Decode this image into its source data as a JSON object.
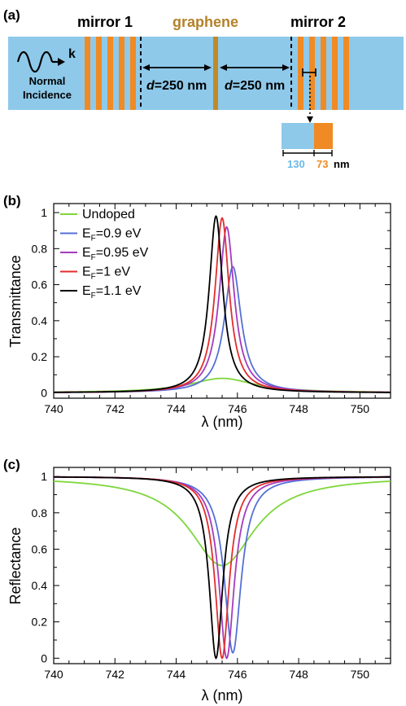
{
  "panel_a": {
    "label": "(a)",
    "mirror1_label": "mirror 1",
    "graphene_label": "graphene",
    "mirror2_label": "mirror 2",
    "k_label": "k",
    "incidence_line1": "Normal",
    "incidence_line2": "Incidence",
    "d_left": {
      "d": "d",
      "value": "=250 nm"
    },
    "d_right": {
      "d": "d",
      "value": "=250 nm"
    },
    "layer_a": "130",
    "layer_b": "73",
    "unit": "nm",
    "colors": {
      "waveguide": "#8ec9ea",
      "mirror": "#f08a24",
      "graphene": "#c0892a",
      "graphene_text": "#b3822a",
      "layer_a_text": "#6cb8e4"
    }
  },
  "chart_data": [
    {
      "panel_label": "(b)",
      "type": "line",
      "xlabel": "λ (nm)",
      "ylabel": "Transmittance",
      "xlim": [
        740,
        751
      ],
      "ylim": [
        -0.03,
        1.05
      ],
      "xticks": [
        "740",
        "742",
        "744",
        "746",
        "748",
        "750"
      ],
      "yticks": [
        "0",
        "0.2",
        "0.4",
        "0.6",
        "0.8",
        "1"
      ],
      "legend_position": "top-left",
      "series": [
        {
          "name": "Undoped",
          "sub": "",
          "color": "#7ed63c",
          "x0": 745.5,
          "hwhm": 1.3,
          "peak": 0.08,
          "base": 0.0,
          "type": "peak"
        },
        {
          "name": "E",
          "sub": "F",
          "suffix": "=0.9 eV",
          "color": "#5470d6",
          "x0": 745.85,
          "hwhm": 0.33,
          "peak": 0.7,
          "base": 0.0,
          "type": "peak"
        },
        {
          "name": "E",
          "sub": "F",
          "suffix": "=0.95 eV",
          "color": "#a43bbf",
          "x0": 745.65,
          "hwhm": 0.3,
          "peak": 0.92,
          "base": 0.0,
          "type": "peak"
        },
        {
          "name": "E",
          "sub": "F",
          "suffix": "=1 eV",
          "color": "#e32d2d",
          "x0": 745.5,
          "hwhm": 0.28,
          "peak": 0.97,
          "base": 0.0,
          "type": "peak"
        },
        {
          "name": "E",
          "sub": "F",
          "suffix": "=1.1 eV",
          "color": "#000000",
          "x0": 745.3,
          "hwhm": 0.27,
          "peak": 0.98,
          "base": 0.0,
          "type": "peak"
        }
      ]
    },
    {
      "panel_label": "(c)",
      "type": "line",
      "xlabel": "λ (nm)",
      "ylabel": "Reflectance",
      "xlim": [
        740,
        751
      ],
      "ylim": [
        -0.03,
        1.05
      ],
      "xticks": [
        "740",
        "742",
        "744",
        "746",
        "748",
        "750"
      ],
      "yticks": [
        "0",
        "0.2",
        "0.4",
        "0.6",
        "0.8",
        "1"
      ],
      "series": [
        {
          "color": "#7ed63c",
          "x0": 745.5,
          "hwhm": 1.3,
          "dip": 0.51,
          "base": 1.0,
          "type": "dip"
        },
        {
          "color": "#5470d6",
          "x0": 745.85,
          "hwhm": 0.33,
          "dip": 0.03,
          "base": 1.0,
          "type": "dip"
        },
        {
          "color": "#a43bbf",
          "x0": 745.65,
          "hwhm": 0.3,
          "dip": 0.0,
          "base": 1.0,
          "type": "dip"
        },
        {
          "color": "#e32d2d",
          "x0": 745.5,
          "hwhm": 0.28,
          "dip": 0.0,
          "base": 1.0,
          "type": "dip"
        },
        {
          "color": "#000000",
          "x0": 745.3,
          "hwhm": 0.27,
          "dip": 0.0,
          "base": 1.0,
          "type": "dip"
        }
      ]
    }
  ]
}
